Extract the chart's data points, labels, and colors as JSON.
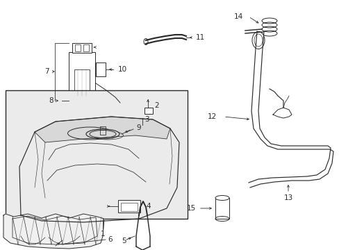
{
  "bg_color": "#ffffff",
  "line_color": "#2a2a2a",
  "label_color": "#000000",
  "box_bg": "#e8e8e8",
  "figsize": [
    4.89,
    3.6
  ],
  "dpi": 100,
  "lw": 0.7,
  "font_size": 7.5
}
